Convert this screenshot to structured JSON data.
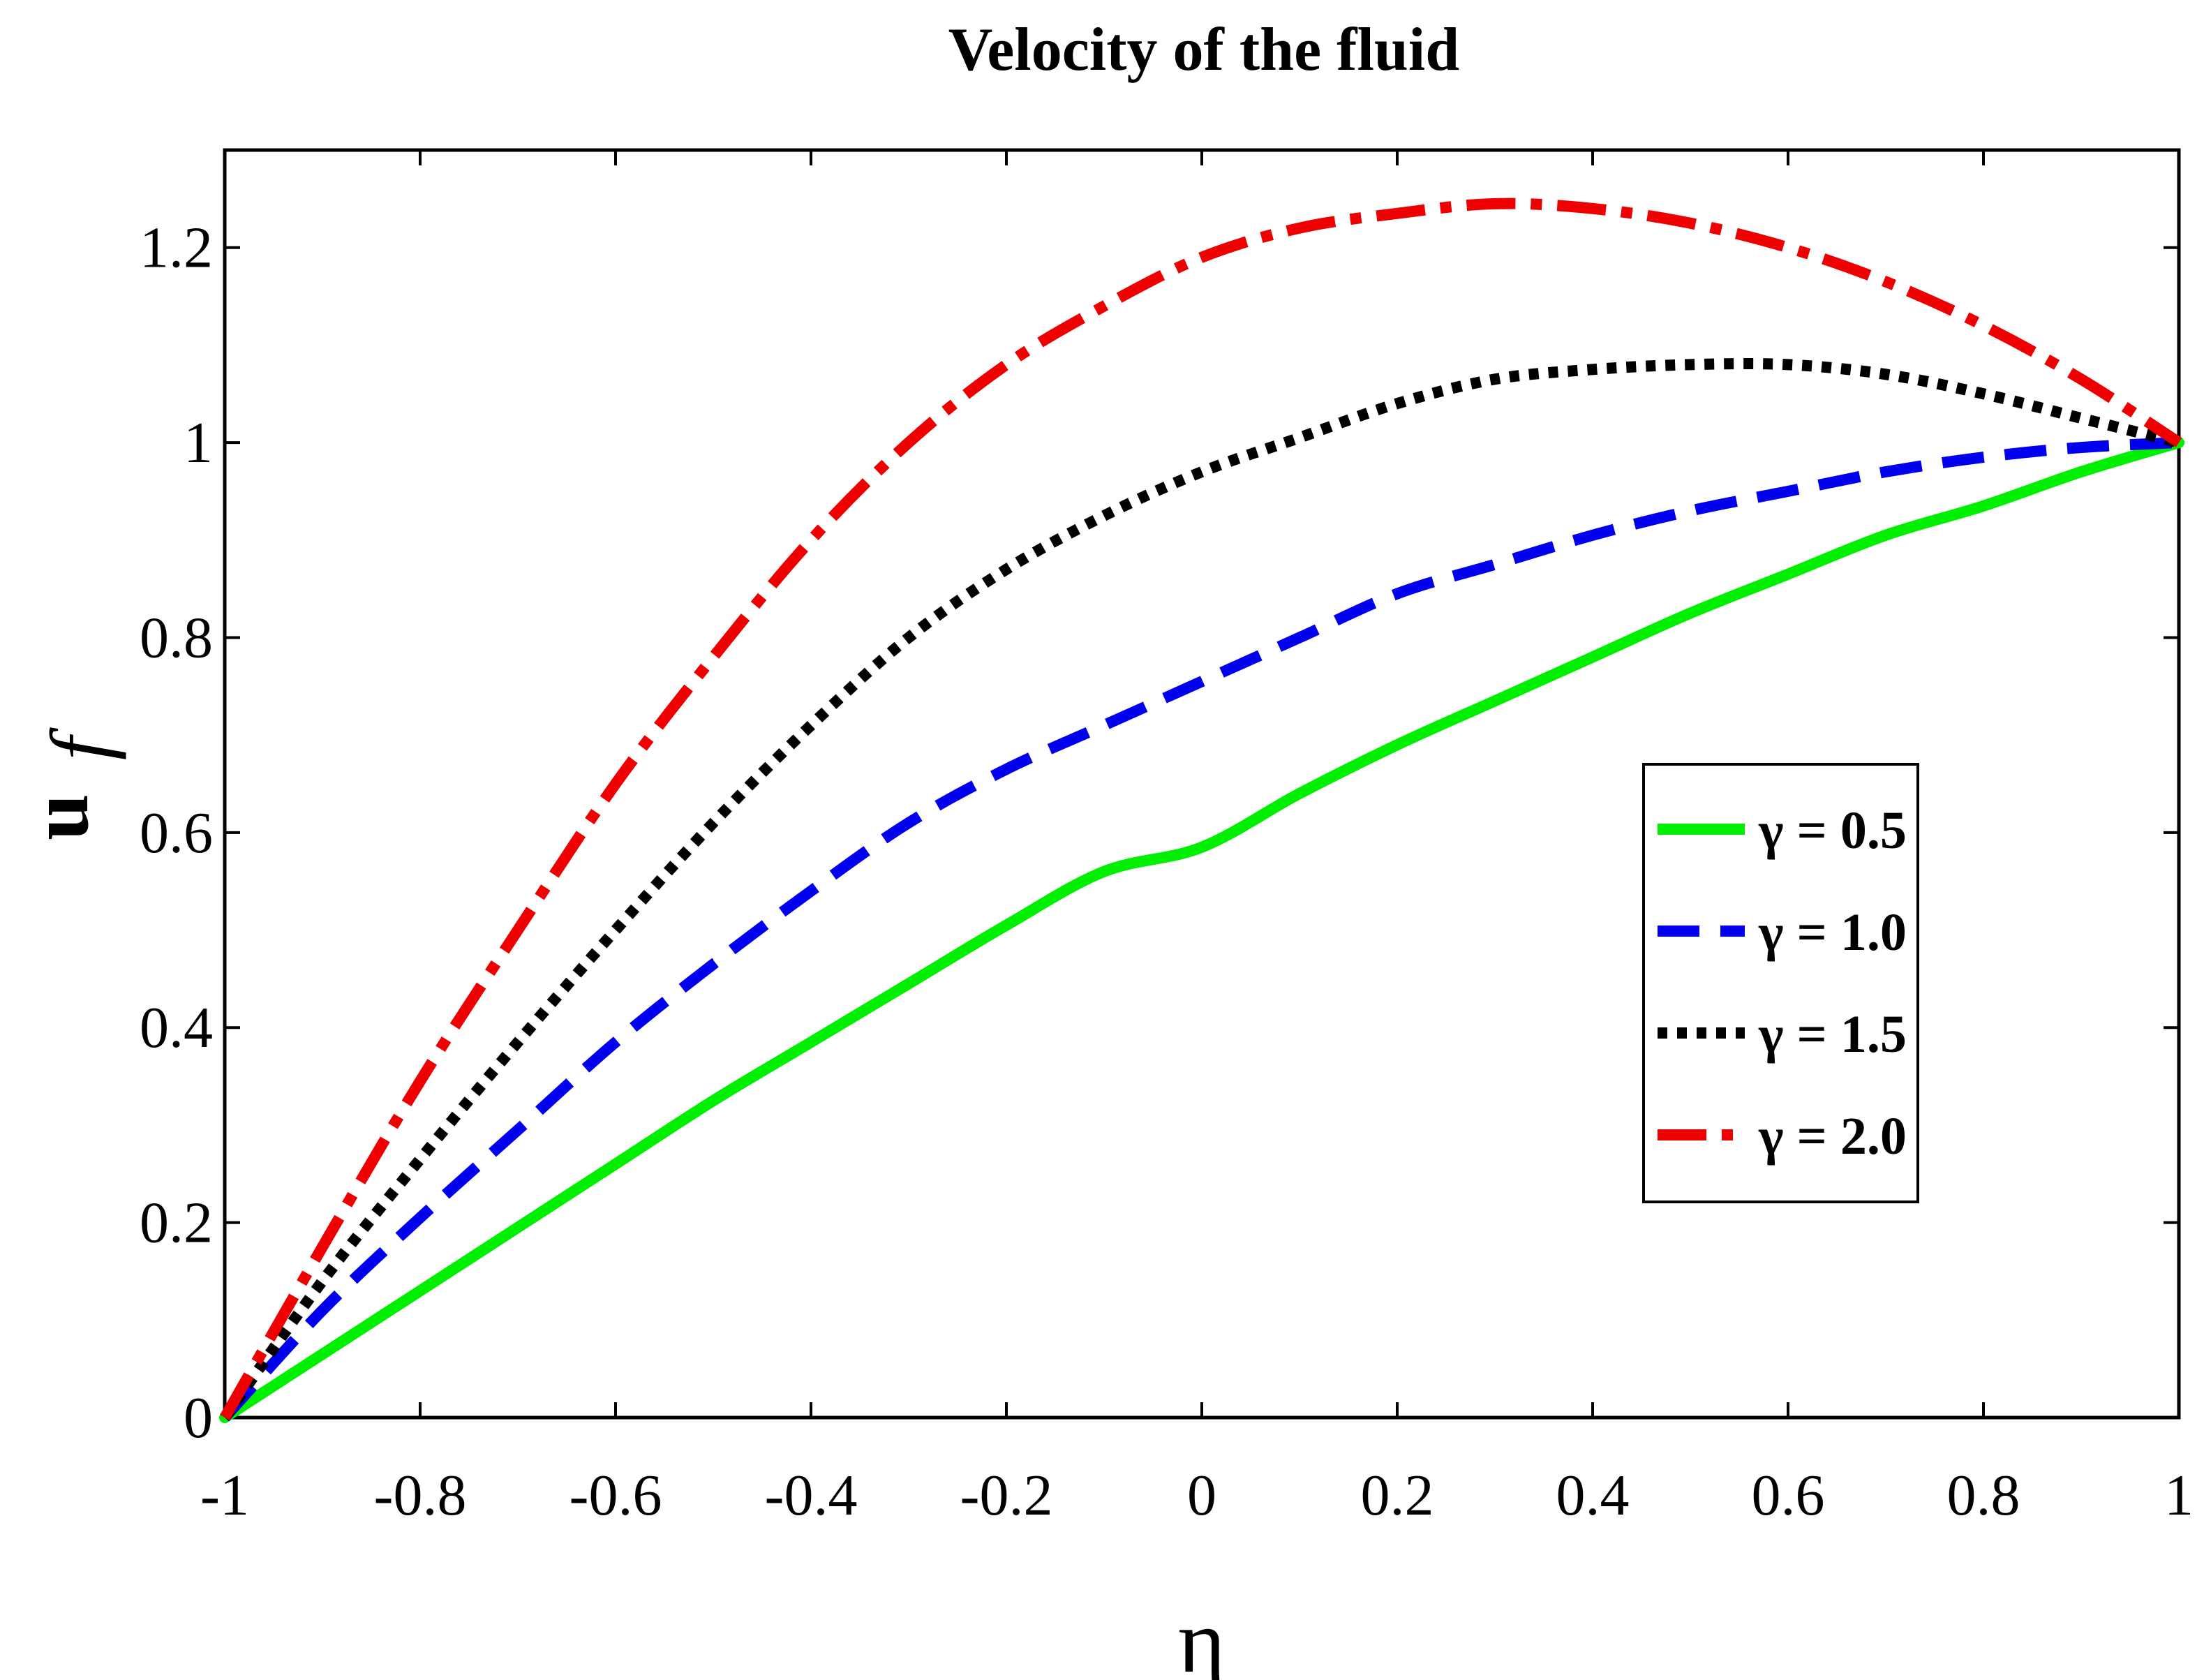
{
  "chart_data": {
    "type": "line",
    "title": "Velocity of the fluid",
    "xlabel": "η",
    "ylabel": "u",
    "ylabel_sub": "f",
    "xlim": [
      -1,
      1
    ],
    "ylim": [
      0,
      1.3
    ],
    "xticks": [
      -1,
      -0.8,
      -0.6,
      -0.4,
      -0.2,
      0,
      0.2,
      0.4,
      0.6,
      0.8,
      1
    ],
    "xtick_labels": [
      "-1",
      "-0.8",
      "-0.6",
      "-0.4",
      "-0.2",
      "0",
      "0.2",
      "0.4",
      "0.6",
      "0.8",
      "1"
    ],
    "yticks": [
      0,
      0.2,
      0.4,
      0.6,
      0.8,
      1,
      1.2
    ],
    "ytick_labels": [
      "0",
      "0.2",
      "0.4",
      "0.6",
      "0.8",
      "1",
      "1.2"
    ],
    "grid": false,
    "legend_position": "center-right",
    "x": [
      -1,
      -0.9,
      -0.8,
      -0.7,
      -0.6,
      -0.5,
      -0.4,
      -0.3,
      -0.2,
      -0.1,
      0,
      0.1,
      0.2,
      0.3,
      0.4,
      0.5,
      0.6,
      0.7,
      0.8,
      0.9,
      1
    ],
    "series": [
      {
        "name": "γ = 0.5",
        "color": "#00ee00",
        "style": "solid",
        "values": [
          0,
          0.065,
          0.13,
          0.195,
          0.26,
          0.325,
          0.385,
          0.445,
          0.505,
          0.56,
          0.585,
          0.64,
          0.69,
          0.735,
          0.78,
          0.825,
          0.865,
          0.905,
          0.935,
          0.97,
          1.0
        ]
      },
      {
        "name": "γ = 1.0",
        "color": "#0000ee",
        "style": "dashed",
        "values": [
          0,
          0.11,
          0.205,
          0.295,
          0.385,
          0.465,
          0.54,
          0.61,
          0.665,
          0.71,
          0.755,
          0.8,
          0.845,
          0.875,
          0.905,
          0.93,
          0.95,
          0.97,
          0.985,
          0.995,
          1.0
        ]
      },
      {
        "name": "γ = 1.5",
        "color": "#000000",
        "style": "dotted",
        "values": [
          0,
          0.14,
          0.265,
          0.385,
          0.5,
          0.61,
          0.71,
          0.8,
          0.87,
          0.925,
          0.97,
          1.005,
          1.04,
          1.065,
          1.075,
          1.08,
          1.08,
          1.07,
          1.05,
          1.025,
          1.0
        ]
      },
      {
        "name": "γ = 2.0",
        "color": "#ee0000",
        "style": "dashdot",
        "values": [
          0,
          0.175,
          0.345,
          0.5,
          0.65,
          0.78,
          0.9,
          1.0,
          1.08,
          1.14,
          1.19,
          1.22,
          1.235,
          1.245,
          1.24,
          1.225,
          1.2,
          1.165,
          1.12,
          1.065,
          1.0
        ]
      }
    ]
  }
}
